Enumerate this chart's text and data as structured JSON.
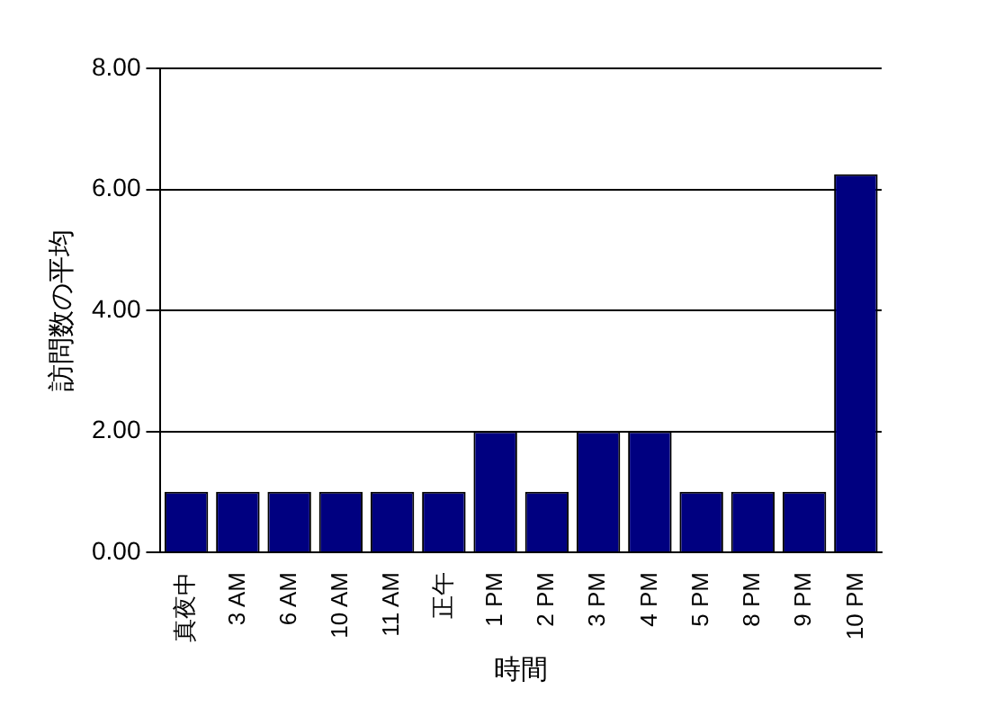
{
  "chart_data": {
    "type": "bar",
    "xlabel": "時間",
    "ylabel": "訪問数の平均",
    "categories": [
      "真夜中",
      "3 AM",
      "6 AM",
      "10 AM",
      "11 AM",
      "正午",
      "1 PM",
      "2 PM",
      "3 PM",
      "4 PM",
      "5 PM",
      "8 PM",
      "9 PM",
      "10 PM"
    ],
    "values": [
      1,
      1,
      1,
      1,
      1,
      1,
      2,
      1,
      2,
      2,
      1,
      1,
      1,
      6.25
    ],
    "color": "#000080",
    "ylim": [
      0,
      8
    ],
    "yticks": [
      {
        "value": 0,
        "label": "0.00"
      },
      {
        "value": 2,
        "label": "2.00"
      },
      {
        "value": 4,
        "label": "4.00"
      },
      {
        "value": 6,
        "label": "6.00"
      },
      {
        "value": 8,
        "label": "8.00"
      }
    ],
    "grid": "y",
    "legend": false
  }
}
